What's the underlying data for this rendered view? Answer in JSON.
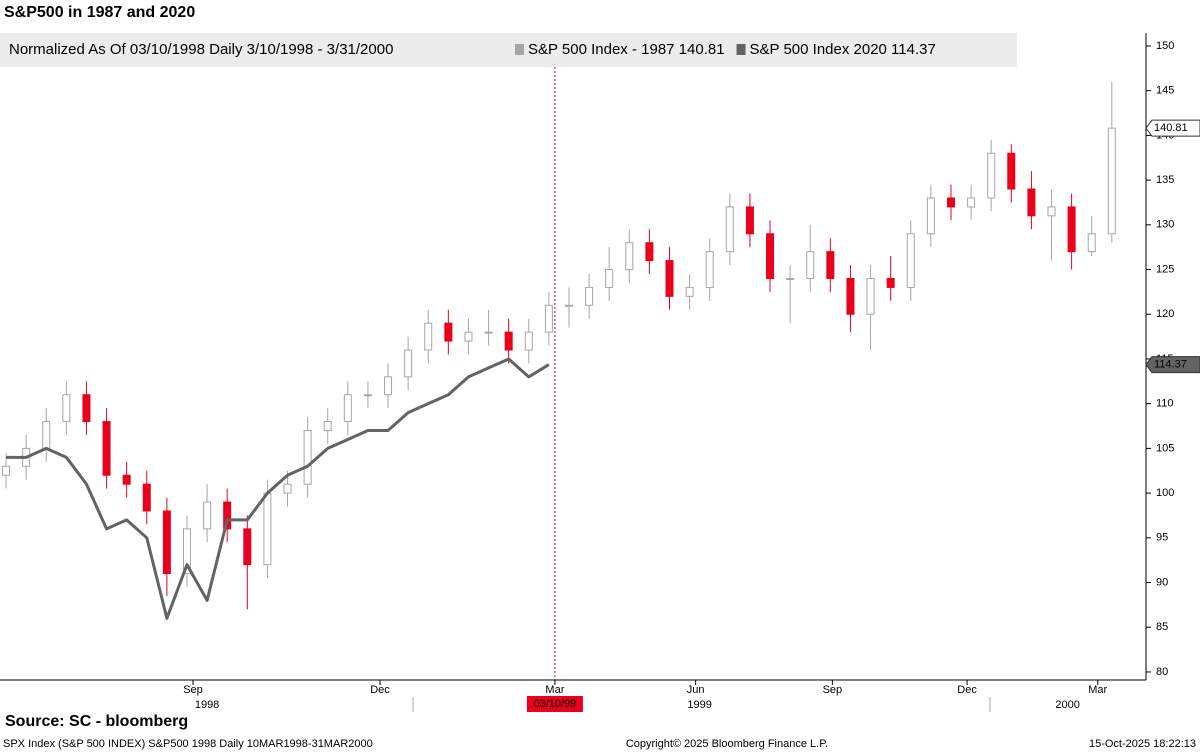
{
  "chart_data": {
    "type": "candlestick",
    "title": "S&P500 in 1987 and 2020",
    "legend_header": "Normalized As Of 03/10/1998   Daily 3/10/1998 - 3/31/2000",
    "ylim": [
      79.1,
      151.45
    ],
    "yticks": [
      80,
      85,
      90,
      95,
      100,
      105,
      110,
      115,
      120,
      125,
      130,
      135,
      140,
      145,
      150
    ],
    "xlim": [
      -0.3,
      56.7
    ],
    "xticks": [
      {
        "value": 9.3,
        "label": "Sep"
      },
      {
        "value": 18.6,
        "label": "Dec"
      },
      {
        "value": 27.3,
        "label": "Mar"
      },
      {
        "value": 34.3,
        "label": "Jun"
      },
      {
        "value": 41.1,
        "label": "Sep"
      },
      {
        "value": 47.8,
        "label": "Dec"
      },
      {
        "value": 54.3,
        "label": "Mar"
      }
    ],
    "years": [
      {
        "value": 10,
        "label": "1998"
      },
      {
        "value": 34.5,
        "label": "1999"
      },
      {
        "value": 52.8,
        "label": "2000"
      }
    ],
    "marker": {
      "value": 27.3,
      "label": "03/10/99",
      "color": "#e8001c"
    },
    "series": [
      {
        "name": "S&P 500 Index - 1987 140.81",
        "type": "candlestick",
        "color": "#a6a6a6",
        "down_color": "#e8001c",
        "open": [
          102,
          103,
          105,
          108,
          111,
          108,
          102,
          101,
          98,
          91,
          96,
          99,
          96,
          92,
          100,
          101,
          107,
          108,
          111,
          111,
          113,
          116,
          119,
          117,
          118,
          118,
          116,
          118,
          121,
          121,
          123,
          125,
          128,
          126,
          122,
          123,
          127,
          132,
          129,
          124,
          124,
          127,
          124,
          120,
          124,
          123,
          129,
          133,
          132,
          133,
          138,
          134,
          131,
          132,
          127,
          129
        ],
        "high": [
          104.5,
          106.5,
          109.5,
          112.5,
          112.5,
          109.5,
          103.5,
          102.5,
          99.5,
          97.5,
          101,
          100.5,
          97.5,
          101.5,
          102.5,
          108.5,
          109.5,
          112.5,
          112.5,
          114.5,
          117.5,
          120.5,
          120.5,
          119.5,
          120.5,
          119.5,
          119.5,
          122.5,
          123,
          124.5,
          127.5,
          129.5,
          129.5,
          127.5,
          124.5,
          128.5,
          133.5,
          133.5,
          130.5,
          125.5,
          130,
          128.5,
          125.5,
          125.5,
          126.5,
          130.5,
          134.5,
          134.5,
          134.5,
          139.5,
          139,
          136,
          134,
          133.5,
          131,
          146
        ],
        "low": [
          100.5,
          101.5,
          103.5,
          106.5,
          106.5,
          100.5,
          99.5,
          96.5,
          88.5,
          89.5,
          94.5,
          94.5,
          87,
          90.5,
          98.5,
          99.5,
          105.5,
          106.5,
          109.5,
          109.5,
          111.5,
          114.5,
          115.5,
          115.5,
          116.5,
          114.5,
          114.5,
          116.5,
          118.5,
          119.5,
          121.5,
          123.5,
          124.5,
          120.5,
          120.5,
          121.5,
          125.5,
          127.5,
          122.5,
          119,
          122.5,
          122.5,
          118,
          116,
          121.5,
          121.5,
          127.5,
          130.5,
          130.5,
          131.5,
          132.5,
          129.5,
          126,
          125,
          126.5,
          128
        ],
        "close": [
          103,
          105,
          108,
          111,
          108,
          102,
          101,
          98,
          91,
          96,
          99,
          96,
          92,
          100,
          101,
          107,
          108,
          111,
          111,
          113,
          116,
          119,
          117,
          118,
          118,
          116,
          118,
          121,
          121,
          123,
          125,
          128,
          126,
          122,
          123,
          127,
          132,
          129,
          124,
          124,
          127,
          124,
          120,
          124,
          123,
          129,
          133,
          132,
          133,
          138,
          134,
          131,
          132,
          127,
          129,
          140.81
        ]
      },
      {
        "name": "S&P 500 Index 2020 114.37",
        "type": "line",
        "color": "#636363",
        "values": [
          104,
          104,
          105,
          104,
          101,
          96,
          97,
          95,
          86,
          92,
          88,
          97,
          97,
          100,
          102,
          103,
          105,
          106,
          107,
          107,
          109,
          110,
          111,
          113,
          114,
          115,
          113,
          114.37,
          null,
          null,
          null,
          null,
          null,
          null,
          null,
          null,
          null,
          null,
          null,
          null,
          null,
          null,
          null,
          null,
          null,
          null,
          null,
          null,
          null,
          null,
          null,
          null,
          null,
          null,
          null,
          null
        ]
      }
    ],
    "source": "Source: SC - bloomberg",
    "footer_left": "SPX Index (S&P 500 INDEX) S&P500 1998 Daily 10MAR1998-31MAR2000",
    "footer_center": "Copyright© 2025 Bloomberg Finance L.P.",
    "footer_right": "15-Oct-2025 18:22:13"
  }
}
